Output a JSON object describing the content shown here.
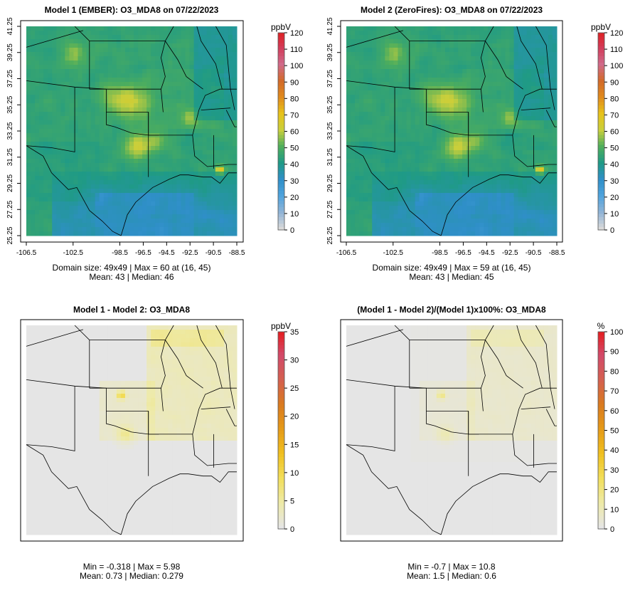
{
  "chart_data": [
    {
      "type": "heatmap",
      "title": "Model 1 (EMBER): O3_MDA8 on 07/22/2023",
      "units": "ppbV",
      "scale": "abs",
      "colorbar_ticks": [
        0,
        10,
        20,
        30,
        40,
        50,
        60,
        70,
        80,
        90,
        100,
        110,
        120
      ],
      "colorbar_range": [
        0,
        120
      ],
      "x_ticks": [
        "-106.5",
        "-102.5",
        "-98.5",
        "-96.5",
        "-94.5",
        "-92.5",
        "-90.5",
        "-88.5"
      ],
      "y_ticks": [
        "25.25",
        "27.25",
        "29.25",
        "31.25",
        "33.25",
        "35.25",
        "37.25",
        "39.25",
        "41.25"
      ],
      "footer": [
        "Domain size: 49x49 | Max = 60 at (16, 45)",
        "Mean: 43 |  Median: 46"
      ],
      "stats": {
        "domain_size": "49x49",
        "max": 60,
        "max_at": [
          16,
          45
        ],
        "mean": 43,
        "median": 46
      }
    },
    {
      "type": "heatmap",
      "title": "Model 2 (ZeroFires): O3_MDA8 on 07/22/2023",
      "units": "ppbV",
      "scale": "abs",
      "colorbar_ticks": [
        0,
        10,
        20,
        30,
        40,
        50,
        60,
        70,
        80,
        90,
        100,
        110,
        120
      ],
      "colorbar_range": [
        0,
        120
      ],
      "x_ticks": [
        "-106.5",
        "-102.5",
        "-98.5",
        "-96.5",
        "-94.5",
        "-92.5",
        "-90.5",
        "-88.5"
      ],
      "y_ticks": [
        "25.25",
        "27.25",
        "29.25",
        "31.25",
        "33.25",
        "35.25",
        "37.25",
        "39.25",
        "41.25"
      ],
      "footer": [
        "Domain size: 49x49 | Max = 59 at (16, 45)",
        "Mean: 43 |  Median: 45"
      ],
      "stats": {
        "domain_size": "49x49",
        "max": 59,
        "max_at": [
          16,
          45
        ],
        "mean": 43,
        "median": 45
      }
    },
    {
      "type": "heatmap",
      "title": "Model 1 - Model 2: O3_MDA8",
      "units": "ppbV",
      "scale": "diff",
      "colorbar_ticks": [
        0,
        5,
        10,
        15,
        20,
        25,
        30,
        35
      ],
      "colorbar_range": [
        0,
        35
      ],
      "x_ticks": [],
      "y_ticks": [],
      "footer": [
        "Min = -0.318 | Max = 5.98",
        "Mean: 0.73 |  Median: 0.279"
      ],
      "stats": {
        "min": -0.318,
        "max": 5.98,
        "mean": 0.73,
        "median": 0.279
      }
    },
    {
      "type": "heatmap",
      "title": "(Model 1 - Model 2)/(Model 1)x100%: O3_MDA8",
      "units": "%",
      "scale": "pct",
      "colorbar_ticks": [
        0,
        10,
        20,
        30,
        40,
        50,
        60,
        70,
        80,
        90,
        100
      ],
      "colorbar_range": [
        0,
        100
      ],
      "x_ticks": [],
      "y_ticks": [],
      "footer": [
        "Min = -0.7 | Max = 10.8",
        "Mean: 1.5 |  Median: 0.6"
      ],
      "stats": {
        "min": -0.7,
        "max": 10.8,
        "mean": 1.5,
        "median": 0.6
      }
    }
  ],
  "colors": {
    "abs_scale": [
      "#d9d9d9",
      "#8fb3d6",
      "#4ea3dd",
      "#2f8fc8",
      "#1f9a86",
      "#4fae5c",
      "#c9cf3c",
      "#e7c21a",
      "#e08a1c",
      "#d26a2a",
      "#d06a8a",
      "#d23c5a",
      "#e01e1e"
    ],
    "diff_scale": [
      "#e5e5e5",
      "#eeeaa8",
      "#f2de5a",
      "#f0c020",
      "#e59a18",
      "#d97a20",
      "#d46050",
      "#d24a6a",
      "#e61a1a"
    ],
    "frame": "#000000"
  }
}
